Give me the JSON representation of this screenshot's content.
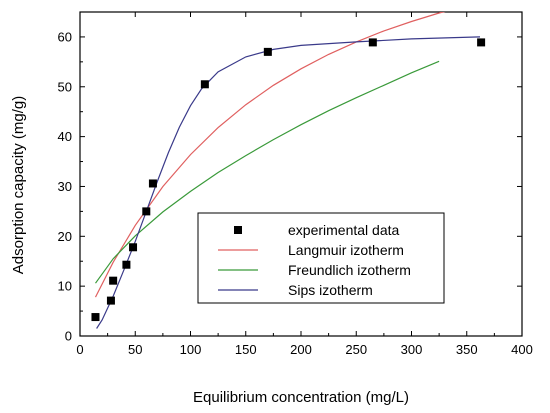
{
  "chart_data": {
    "type": "scatter",
    "title": "",
    "xlabel": "Equilibrium concentration (mg/L)",
    "ylabel": "Adsorption capacity (mg/g)",
    "xlim": [
      0,
      400
    ],
    "ylim": [
      0,
      65
    ],
    "x_ticks": [
      0,
      50,
      100,
      150,
      200,
      250,
      300,
      350,
      400
    ],
    "y_ticks": [
      0,
      10,
      20,
      30,
      40,
      50,
      60
    ],
    "grid": false,
    "legend_position": "center-right",
    "series": [
      {
        "name": "experimental data",
        "kind": "scatter",
        "marker": "square",
        "color": "#000000",
        "points": [
          [
            14,
            3.8
          ],
          [
            28,
            7.1
          ],
          [
            30,
            11.1
          ],
          [
            42,
            14.3
          ],
          [
            48,
            17.8
          ],
          [
            60,
            25.0
          ],
          [
            66,
            30.6
          ],
          [
            113,
            50.5
          ],
          [
            170,
            57.0
          ],
          [
            265,
            58.9
          ],
          [
            363,
            58.9
          ]
        ]
      },
      {
        "name": "Langmuir izotherm",
        "kind": "line",
        "color": "#e06060",
        "points": [
          [
            14,
            7.8
          ],
          [
            30,
            14.8
          ],
          [
            50,
            22.2
          ],
          [
            75,
            30.0
          ],
          [
            100,
            36.4
          ],
          [
            125,
            41.8
          ],
          [
            150,
            46.4
          ],
          [
            175,
            50.3
          ],
          [
            200,
            53.6
          ],
          [
            225,
            56.5
          ],
          [
            250,
            59.0
          ],
          [
            275,
            61.2
          ],
          [
            300,
            63.1
          ],
          [
            325,
            64.8
          ],
          [
            352,
            66.3
          ]
        ]
      },
      {
        "name": "Freundlich izotherm",
        "kind": "line",
        "color": "#3a9a3a",
        "points": [
          [
            14,
            10.6
          ],
          [
            30,
            15.5
          ],
          [
            50,
            20.1
          ],
          [
            75,
            24.9
          ],
          [
            100,
            29.0
          ],
          [
            125,
            32.8
          ],
          [
            150,
            36.2
          ],
          [
            175,
            39.4
          ],
          [
            200,
            42.4
          ],
          [
            225,
            45.2
          ],
          [
            250,
            47.8
          ],
          [
            275,
            50.3
          ],
          [
            300,
            52.8
          ],
          [
            325,
            55.1
          ]
        ]
      },
      {
        "name": "Sips izotherm",
        "kind": "line",
        "color": "#3a3a8a",
        "points": [
          [
            15,
            1.5
          ],
          [
            20,
            3.2
          ],
          [
            30,
            8.0
          ],
          [
            40,
            13.4
          ],
          [
            50,
            19.0
          ],
          [
            60,
            25.0
          ],
          [
            70,
            31.0
          ],
          [
            80,
            36.8
          ],
          [
            90,
            41.9
          ],
          [
            100,
            46.2
          ],
          [
            110,
            49.6
          ],
          [
            125,
            53.0
          ],
          [
            150,
            56.0
          ],
          [
            175,
            57.5
          ],
          [
            200,
            58.3
          ],
          [
            250,
            59.0
          ],
          [
            300,
            59.6
          ],
          [
            362,
            60.0
          ]
        ]
      }
    ]
  }
}
